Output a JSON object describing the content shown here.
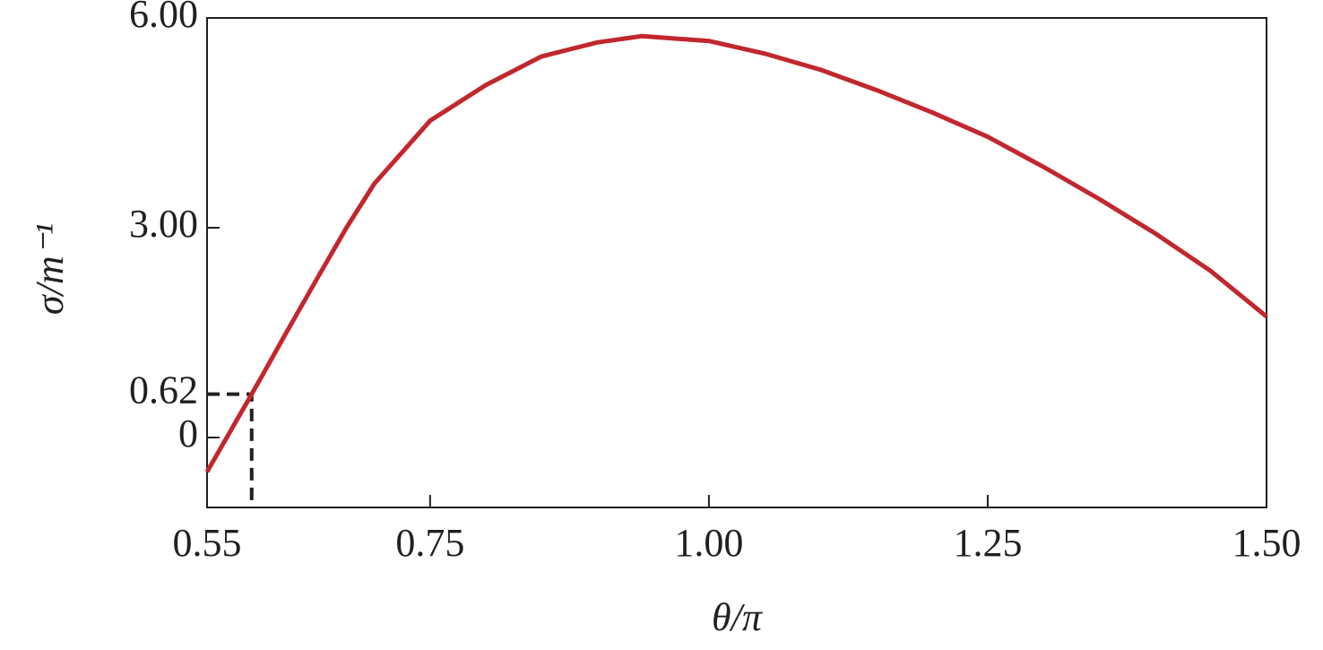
{
  "chart_data": {
    "type": "line",
    "x_label": "θ/π",
    "y_label": "σ/m⁻¹",
    "x": [
      0.55,
      0.59,
      0.6,
      0.62,
      0.65,
      0.675,
      0.7,
      0.75,
      0.8,
      0.85,
      0.9,
      0.94,
      1.0,
      1.05,
      1.1,
      1.15,
      1.2,
      1.25,
      1.3,
      1.35,
      1.4,
      1.45,
      1.5
    ],
    "series": [
      {
        "color": "#c1272d",
        "values": [
          -0.49,
          0.62,
          0.9,
          1.47,
          2.31,
          3.0,
          3.63,
          4.53,
          5.04,
          5.45,
          5.65,
          5.74,
          5.67,
          5.49,
          5.26,
          4.97,
          4.65,
          4.3,
          3.87,
          3.41,
          2.92,
          2.38,
          1.73
        ]
      }
    ],
    "marker": {
      "x": 0.59,
      "y": 0.62
    },
    "xlim": [
      0.55,
      1.5
    ],
    "ylim": [
      -1,
      6
    ],
    "xticks": [
      0.55,
      0.75,
      {
        "value": 1.0,
        "label": "1.00"
      },
      1.25,
      {
        "value": 1.5,
        "label": "1.50"
      }
    ],
    "yticks": [
      0,
      {
        "value": 0.62,
        "label": "0.62"
      },
      {
        "value": 3.0,
        "label": "3.00"
      },
      {
        "value": 6.0,
        "label": "6.00"
      }
    ],
    "grid": false
  }
}
